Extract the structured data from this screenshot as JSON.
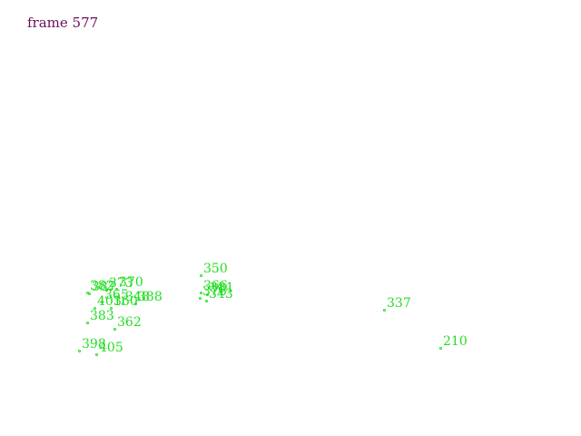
{
  "frame_label": "frame 577",
  "colors": {
    "frame_label": "#6b0f5f",
    "track": "#22dd22",
    "background": "#ffffff"
  },
  "tracks": [
    {
      "id": "350"
    },
    {
      "id": "382"
    },
    {
      "id": "370"
    },
    {
      "id": "387"
    },
    {
      "id": "373"
    },
    {
      "id": "366"
    },
    {
      "id": "381"
    },
    {
      "id": "365"
    },
    {
      "id": "343"
    },
    {
      "id": "376"
    },
    {
      "id": "388"
    },
    {
      "id": "348"
    },
    {
      "id": "360"
    },
    {
      "id": "401"
    },
    {
      "id": "337"
    },
    {
      "id": "383"
    },
    {
      "id": "362"
    },
    {
      "id": "210"
    },
    {
      "id": "398"
    },
    {
      "id": "405"
    }
  ]
}
